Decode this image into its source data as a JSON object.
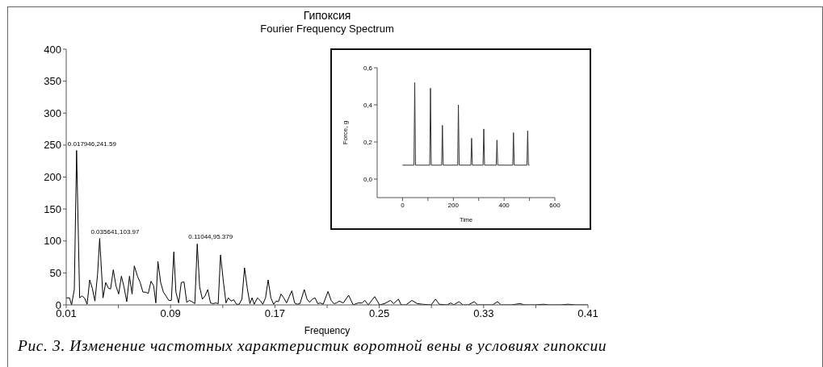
{
  "chart_data": [
    {
      "type": "line",
      "title": "Гипоксия",
      "subtitle": "Fourier Frequency Spectrum",
      "xlabel": "Frequency",
      "series": [
        {
          "color": "#000000",
          "x": [
            0.01,
            0.0125,
            0.0141,
            0.0162,
            0.017946,
            0.0203,
            0.022,
            0.024,
            0.026,
            0.028,
            0.03,
            0.032,
            0.034,
            0.035641,
            0.0382,
            0.0403,
            0.0424,
            0.044,
            0.0461,
            0.0481,
            0.0502,
            0.0523,
            0.0543,
            0.0564,
            0.0585,
            0.0605,
            0.0622,
            0.0646,
            0.0667,
            0.0688,
            0.0708,
            0.0729,
            0.075,
            0.077,
            0.0787,
            0.0803,
            0.0824,
            0.0845,
            0.0865,
            0.0886,
            0.0906,
            0.0925,
            0.0941,
            0.0962,
            0.0982,
            0.1003,
            0.1024,
            0.1044,
            0.1065,
            0.1086,
            0.11044,
            0.1123,
            0.1144,
            0.1164,
            0.1185,
            0.1206,
            0.1226,
            0.1247,
            0.1265,
            0.1283,
            0.1304,
            0.1325,
            0.1343,
            0.1364,
            0.1385,
            0.1405,
            0.1426,
            0.1447,
            0.1467,
            0.1488,
            0.1508,
            0.1525,
            0.1541,
            0.1566,
            0.1586,
            0.1607,
            0.1628,
            0.1648,
            0.1669,
            0.169,
            0.171,
            0.1727,
            0.1747,
            0.1768,
            0.1789,
            0.181,
            0.183,
            0.1851,
            0.1871,
            0.1892,
            0.1925,
            0.1946,
            0.1966,
            0.1987,
            0.2008,
            0.2028,
            0.2049,
            0.207,
            0.2107,
            0.2131,
            0.2152,
            0.2173,
            0.2193,
            0.2224,
            0.2265,
            0.23,
            0.2337,
            0.2368,
            0.2389,
            0.2416,
            0.2465,
            0.2502,
            0.254,
            0.2585,
            0.261,
            0.2647,
            0.2668,
            0.2705,
            0.275,
            0.2791,
            0.2832,
            0.2898,
            0.2931,
            0.296,
            0.3018,
            0.3049,
            0.307,
            0.3111,
            0.3142,
            0.3183,
            0.3228,
            0.3255,
            0.3307,
            0.3369,
            0.3406,
            0.3435,
            0.3513,
            0.3579,
            0.3616,
            0.3698,
            0.376,
            0.3802,
            0.3884,
            0.3946,
            0.4008,
            0.41
          ],
          "values": [
            11,
            11,
            0,
            24,
            241.59,
            11,
            14,
            11,
            1,
            39,
            26,
            6,
            47,
            103.97,
            11,
            35,
            26,
            25,
            55,
            30,
            17,
            45,
            28,
            5,
            45,
            17,
            61,
            45,
            35,
            20,
            20,
            18,
            37,
            30,
            3,
            68,
            35,
            20,
            14,
            7,
            7,
            83,
            20,
            3,
            35,
            36,
            4,
            7,
            5,
            2,
            95.379,
            28,
            9,
            14,
            24,
            3,
            2,
            3,
            2,
            78,
            38,
            3,
            11,
            6,
            8,
            1,
            1,
            9,
            58,
            26,
            2,
            11,
            1,
            11,
            7,
            1,
            11,
            39,
            11,
            1,
            6,
            5,
            17,
            11,
            3,
            13,
            22,
            3,
            1,
            2,
            24,
            9,
            4,
            9,
            11,
            2,
            3,
            1,
            21,
            7,
            2,
            3,
            6,
            3,
            15,
            0,
            3,
            3,
            7,
            0,
            13,
            0,
            2,
            7,
            2,
            9,
            0,
            0,
            7,
            2,
            1,
            0,
            9,
            1,
            0,
            3,
            0,
            5,
            0,
            0,
            5,
            0,
            0,
            0,
            5,
            0,
            0,
            2,
            0,
            0,
            1,
            0,
            0,
            1,
            0,
            0
          ]
        }
      ],
      "xlim": [
        0.01,
        0.41
      ],
      "xticks": [
        0.01,
        {
          "value": 0.05,
          "label": null
        },
        0.09,
        {
          "value": 0.13,
          "label": null
        },
        0.17,
        {
          "value": 0.21,
          "label": null
        },
        0.25,
        {
          "value": 0.29,
          "label": null
        },
        0.33,
        {
          "value": 0.37,
          "label": null
        },
        0.41
      ],
      "ylim": [
        0,
        400
      ],
      "yticks": [
        0,
        50,
        100,
        150,
        200,
        250,
        300,
        350,
        400
      ],
      "annotations": [
        {
          "text": "0.017946,241.59",
          "x": 0.017946,
          "y": 241.59
        },
        {
          "text": "0.035641,103.97",
          "x": 0.035641,
          "y": 103.97
        },
        {
          "text": "0.11044,95.379",
          "x": 0.11044,
          "y": 95.379
        },
        "Рис. 3. Изменение частотных характеристик воротной вены в условиях гипоксии"
      ]
    },
    {
      "type": "line",
      "xlabel": "Time",
      "ylabel": "Force, g",
      "series": [
        {
          "color": "#333333",
          "x": [
            0,
            45,
            48,
            51,
            107,
            110,
            113,
            154,
            157,
            160,
            217,
            220,
            223,
            269,
            272,
            275,
            317,
            320,
            323,
            369,
            372,
            375,
            434,
            437,
            440,
            490,
            493,
            496,
            500
          ],
          "values": [
            0.075,
            0.075,
            0.52,
            0.075,
            0.075,
            0.49,
            0.075,
            0.075,
            0.29,
            0.075,
            0.075,
            0.4,
            0.075,
            0.075,
            0.22,
            0.075,
            0.075,
            0.27,
            0.075,
            0.075,
            0.21,
            0.075,
            0.075,
            0.25,
            0.075,
            0.075,
            0.26,
            0.075,
            0.075
          ]
        }
      ],
      "xlim": [
        -100,
        600
      ],
      "xticks": [
        0,
        {
          "value": 100,
          "label": null
        },
        200,
        {
          "value": 300,
          "label": null
        },
        400,
        {
          "value": 500,
          "label": null
        },
        600
      ],
      "ylim": [
        -0.1,
        0.6
      ],
      "yticks": [
        {
          "value": 0,
          "label": "0,0"
        },
        {
          "value": 0.2,
          "label": "0,2"
        },
        {
          "value": 0.4,
          "label": "0,4"
        },
        {
          "value": 0.6,
          "label": "0,6"
        }
      ]
    }
  ]
}
